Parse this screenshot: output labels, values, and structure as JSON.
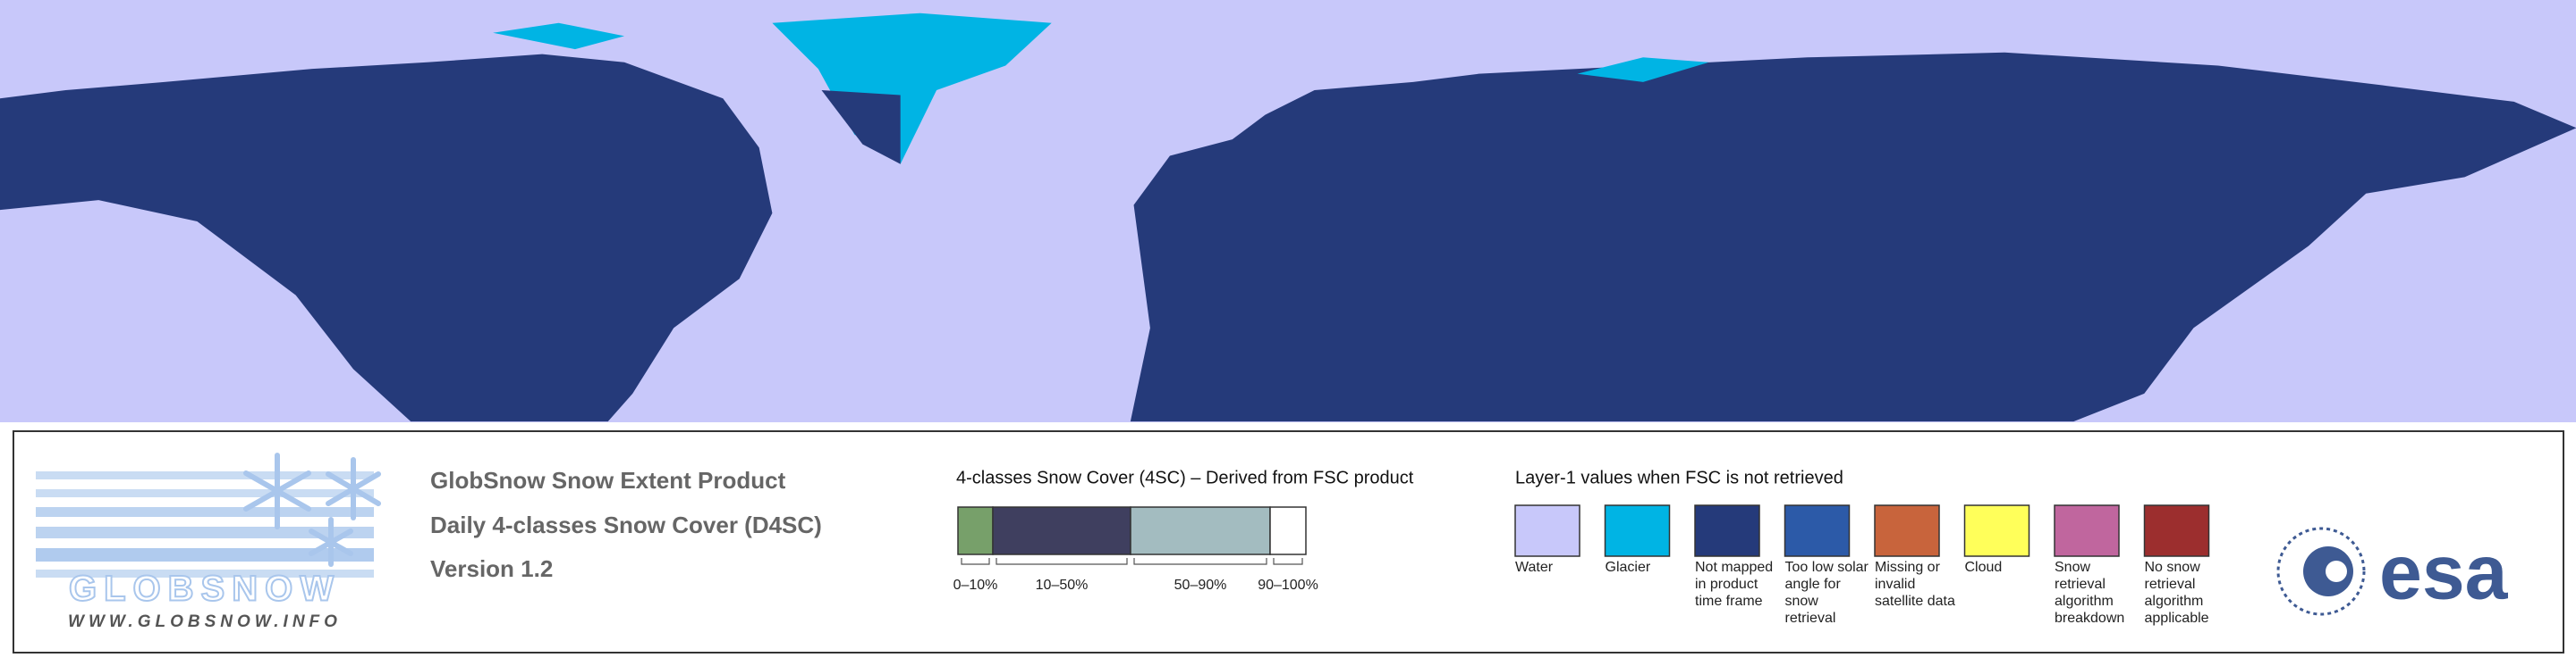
{
  "logo": {
    "name": "GLOBSNOW",
    "url": "WWW.GLOBSNOW.INFO"
  },
  "product": {
    "title": "GlobSnow Snow Extent Product",
    "subtitle": "Daily 4-classes Snow Cover (D4SC)",
    "version": "Version 1.2"
  },
  "snow_cover_legend": {
    "title": "4-classes Snow Cover (4SC) – Derived from FSC product",
    "classes": [
      {
        "label": "0–10%",
        "color": "#77a06a"
      },
      {
        "label": "10–50%",
        "color": "#3f3f5f"
      },
      {
        "label": "50–90%",
        "color": "#a3bcc0"
      },
      {
        "label": "90–100%",
        "color": "#ffffff"
      }
    ]
  },
  "layer1_legend": {
    "title": "Layer-1 values when FSC is not retrieved",
    "items": [
      {
        "label": "Water",
        "color": "#c8c8fa"
      },
      {
        "label": "Glacier",
        "color": "#00b4e4"
      },
      {
        "label": "Not mapped in product time frame",
        "color": "#253a7a"
      },
      {
        "label": "Too low solar angle for snow retrieval",
        "color": "#2c5aa8"
      },
      {
        "label": "Missing or invalid satellite data",
        "color": "#c8643c"
      },
      {
        "label": "Cloud",
        "color": "#ffff5a"
      },
      {
        "label": "Snow retrieval algorithm breakdown",
        "color": "#c0669e"
      },
      {
        "label": "No snow retrieval algorithm applicable",
        "color": "#9c2e2e"
      }
    ]
  },
  "agency": "esa"
}
